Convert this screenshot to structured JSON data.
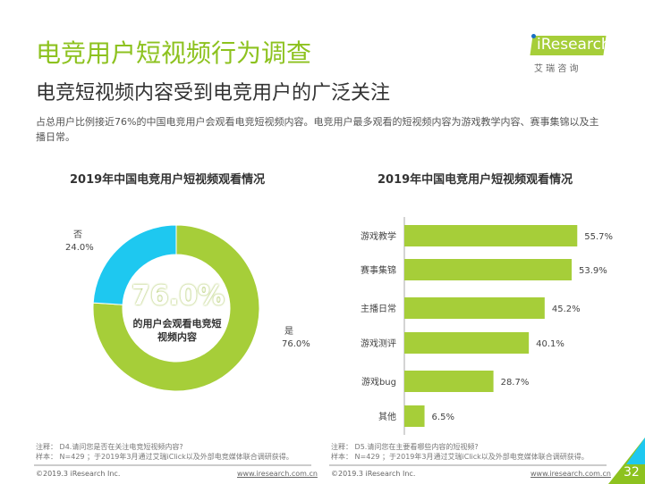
{
  "header": {
    "title": "电竞用户短视频行为调查",
    "subtitle": "电竞短视频内容受到电竞用户的广泛关注",
    "description": "占总用户比例接近76%的中国电竞用户会观看电竞短视频内容。电竞用户最多观看的短视频内容为游戏教学内容、赛事集锦以及主播日常。"
  },
  "logo": {
    "text": "iResearch",
    "cn": "艾 瑞 咨 询"
  },
  "colors": {
    "green": "#a6ce39",
    "blue": "#1ec8f0",
    "title": "#8dc21f"
  },
  "chart_data": [
    {
      "type": "pie",
      "title": "2019年中国电竞用户短视频观看情况",
      "labels": [
        "是",
        "否"
      ],
      "values": [
        76.0,
        24.0
      ],
      "value_labels": [
        "76.0%",
        "24.0%"
      ],
      "center_value": "76.0%",
      "center_text": "的用户会观看电竞短视频内容",
      "center_line1": "的用户会观看电竞短",
      "center_line2": "视频内容"
    },
    {
      "type": "bar",
      "orientation": "horizontal",
      "title": "2019年中国电竞用户短视频观看情况",
      "categories": [
        "游戏教学",
        "赛事集锦",
        "主播日常",
        "游戏测评",
        "游戏bug",
        "其他"
      ],
      "values": [
        55.7,
        53.9,
        45.2,
        40.1,
        28.7,
        6.5
      ],
      "value_labels": [
        "55.7%",
        "53.9%",
        "45.2%",
        "40.1%",
        "28.7%",
        "6.5%"
      ]
    }
  ],
  "notes": {
    "left_note": "注释： D4.请问您是否在关注电竞短视频内容?",
    "left_sample": "样本： N=429 ；于2019年3月通过艾瑞iClick以及外部电竞媒体联合调研获得。",
    "right_note": "注释： D5.请问您在主要看哪些内容的短视频?",
    "right_sample": "样本： N=429 ；于2019年3月通过艾瑞iClick以及外部电竞媒体联合调研获得。"
  },
  "footer": {
    "copyright": "©2019.3 iResearch Inc.",
    "url": "www.iresearch.com.cn",
    "page": "32"
  }
}
